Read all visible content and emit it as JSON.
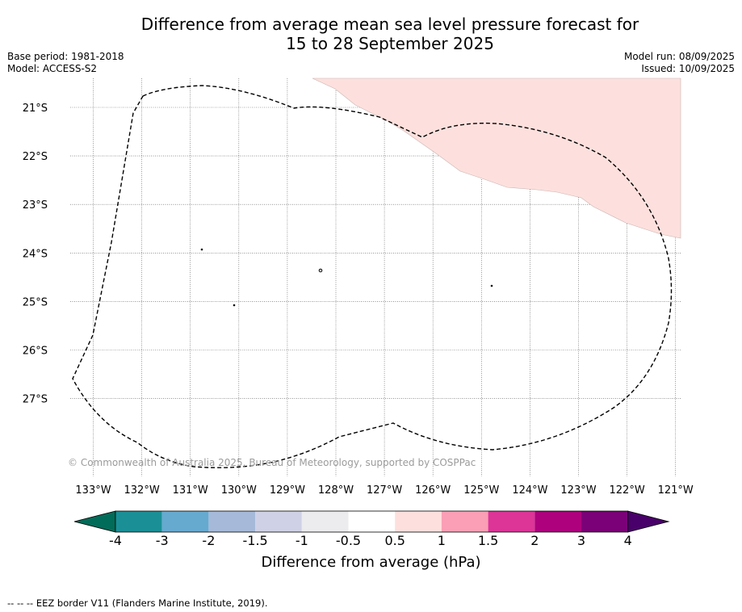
{
  "header": {
    "title_line1": "Difference from average mean sea level pressure forecast for",
    "title_line2": "15 to 28 September 2025",
    "base_period": "Base period: 1981-2018",
    "model": "Model: ACCESS-S2",
    "model_run": "Model run: 08/09/2025",
    "issued": "Issued: 10/09/2025"
  },
  "map": {
    "lat_labels": [
      "21°S",
      "22°S",
      "23°S",
      "24°S",
      "25°S",
      "26°S",
      "27°S"
    ],
    "lon_labels": [
      "133°W",
      "132°W",
      "131°W",
      "130°W",
      "129°W",
      "128°W",
      "127°W",
      "126°W",
      "125°W",
      "124°W",
      "123°W",
      "122°W",
      "121°W"
    ],
    "copyright": "© Commonwealth of Australia 2025, Bureau of Meteorology, supported by COSPPac",
    "anomaly_region": {
      "category": "0.5 to 1",
      "color": "#fde0dd"
    },
    "eez_boundary": {
      "style": "dashed"
    }
  },
  "colorbar": {
    "tick_labels": [
      "-4",
      "-3",
      "-2",
      "-1.5",
      "-1",
      "-0.5",
      "0.5",
      "1",
      "1.5",
      "2",
      "3",
      "4"
    ],
    "colors": [
      "#1a9096",
      "#66aad0",
      "#a6b9d9",
      "#cfd1e6",
      "#ececee",
      "#ffffff",
      "#fde0dd",
      "#fa9fb5",
      "#dd3497",
      "#ae017e",
      "#7a0177"
    ],
    "low_extend_color": "#016c59",
    "high_extend_color": "#49006a",
    "label": "Difference from average (hPa)"
  },
  "footnote": "--  --  -- EEZ border V11 (Flanders Marine Institute, 2019)."
}
